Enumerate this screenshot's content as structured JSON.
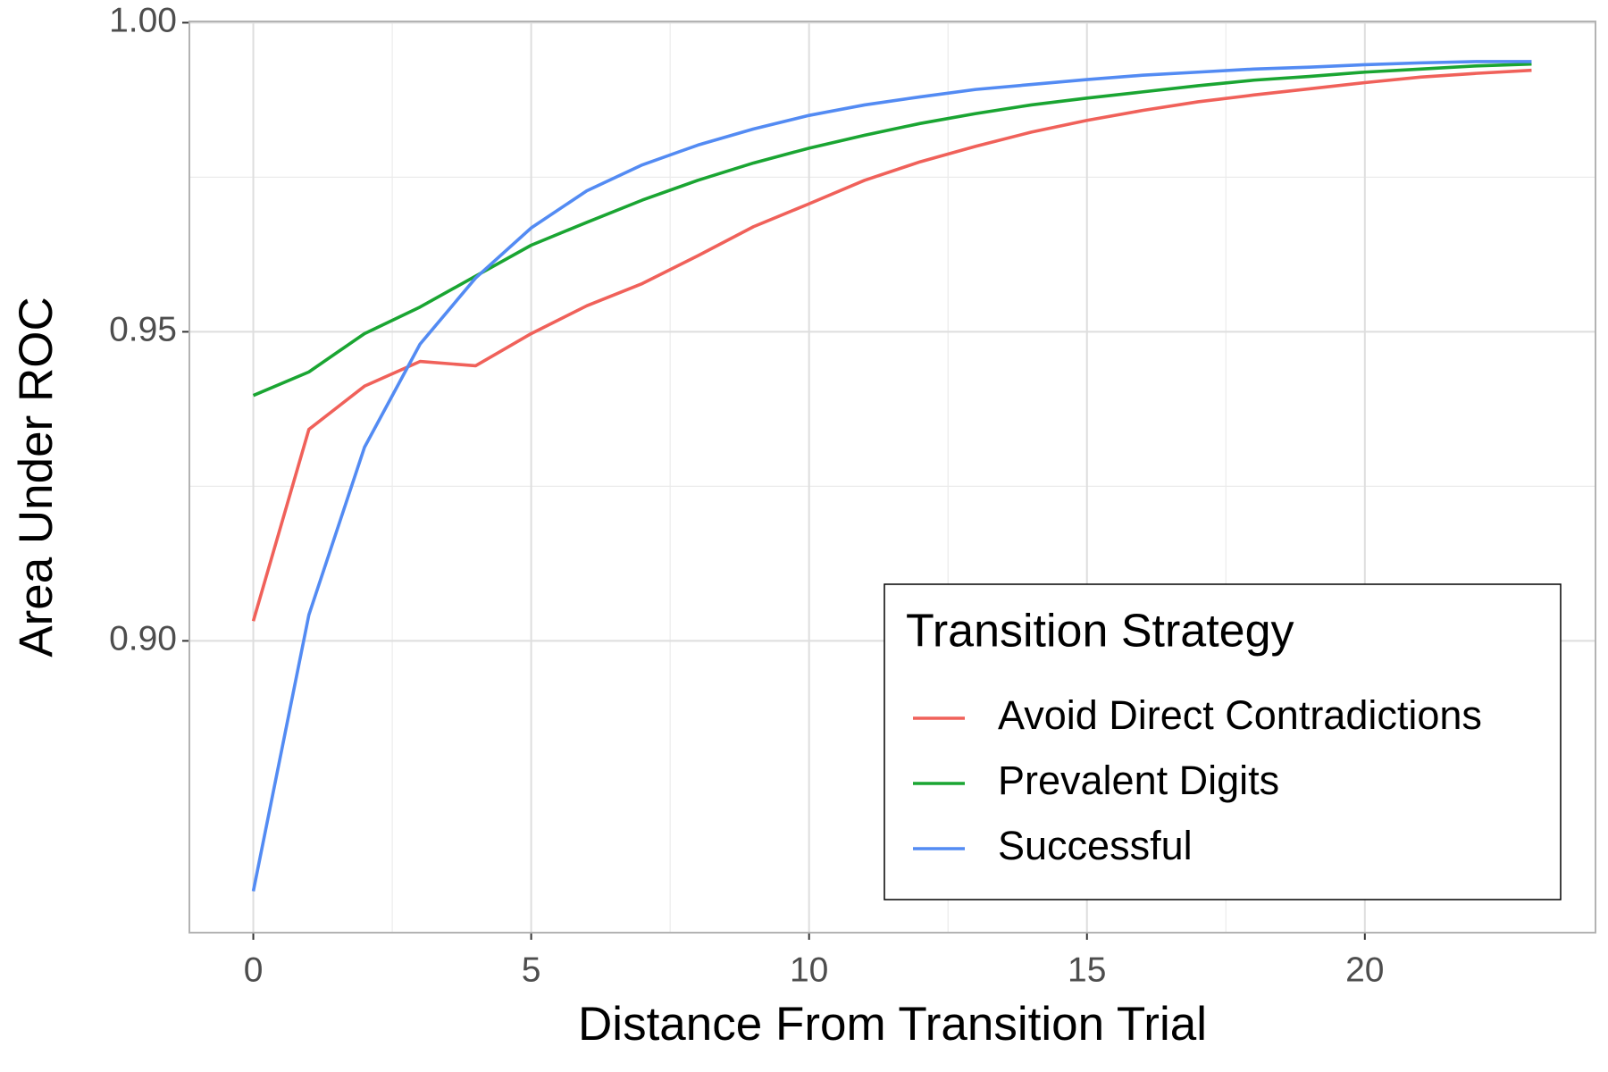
{
  "chart_data": {
    "type": "line",
    "xlabel": "Distance From Transition Trial",
    "ylabel": "Area Under ROC",
    "x": [
      0,
      1,
      2,
      3,
      4,
      5,
      6,
      7,
      8,
      9,
      10,
      11,
      12,
      13,
      14,
      15,
      16,
      17,
      18,
      19,
      20,
      21,
      22,
      23
    ],
    "series": [
      {
        "name": "Avoid Direct Contradictions",
        "color": "#f0615a",
        "values": [
          0.9032,
          0.9342,
          0.9412,
          0.9452,
          0.9445,
          0.9497,
          0.9542,
          0.9578,
          0.9623,
          0.967,
          0.9707,
          0.9745,
          0.9775,
          0.98,
          0.9823,
          0.9842,
          0.9858,
          0.9872,
          0.9883,
          0.9893,
          0.9903,
          0.9912,
          0.9918,
          0.9923
        ]
      },
      {
        "name": "Prevalent Digits",
        "color": "#1aa532",
        "values": [
          0.9397,
          0.9435,
          0.9497,
          0.954,
          0.959,
          0.964,
          0.9677,
          0.9713,
          0.9745,
          0.9773,
          0.9797,
          0.9818,
          0.9837,
          0.9853,
          0.9867,
          0.9878,
          0.9888,
          0.9898,
          0.9907,
          0.9913,
          0.992,
          0.9925,
          0.993,
          0.9933
        ]
      },
      {
        "name": "Successful",
        "color": "#538bf3",
        "values": [
          0.8595,
          0.9042,
          0.9313,
          0.948,
          0.9587,
          0.9668,
          0.9728,
          0.977,
          0.9802,
          0.9828,
          0.985,
          0.9867,
          0.988,
          0.9892,
          0.99,
          0.9908,
          0.9915,
          0.992,
          0.9925,
          0.9928,
          0.9932,
          0.9935,
          0.9937,
          0.9937
        ]
      }
    ],
    "legend_title": "Transition Strategy",
    "legend_position": "bottom-right",
    "xlim": [
      -1.15,
      24.15
    ],
    "xticks": [
      0,
      5,
      10,
      15,
      20
    ],
    "ylim": [
      0.8528,
      1.0002
    ],
    "yticks": [
      {
        "value": 0.9,
        "label": "0.90"
      },
      {
        "value": 0.95,
        "label": "0.95"
      },
      {
        "value": 1.0,
        "label": "1.00"
      }
    ],
    "grid": true
  }
}
